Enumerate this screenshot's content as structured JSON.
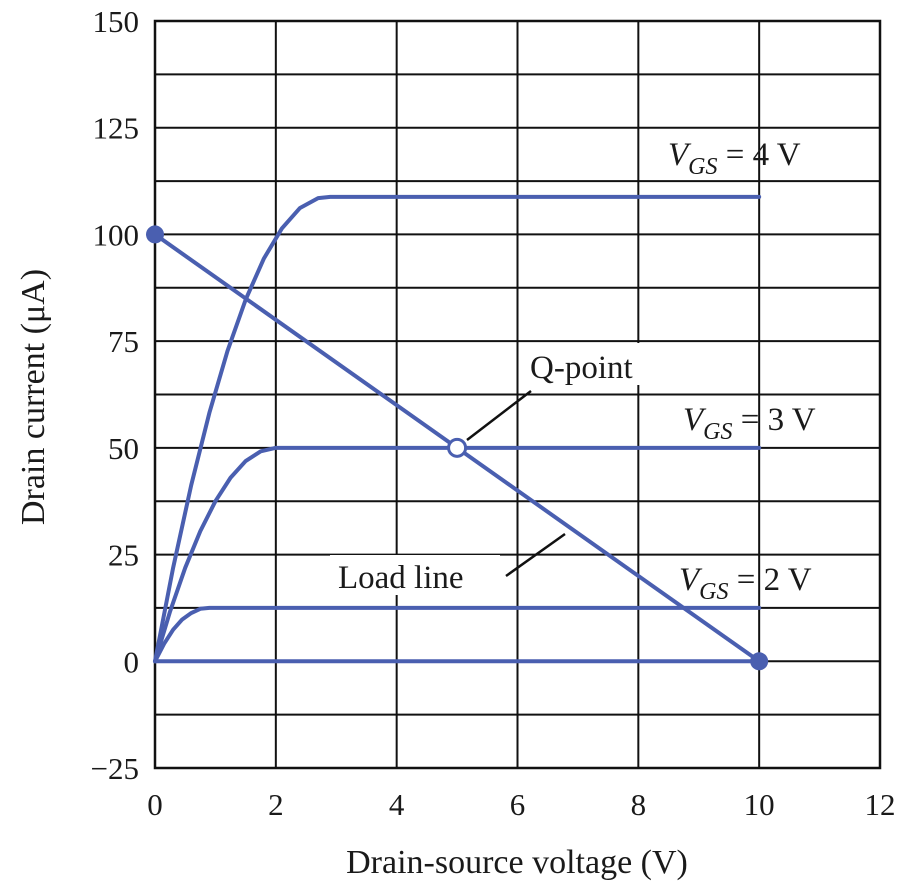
{
  "chart_data": {
    "type": "line",
    "xlabel": "Drain-source voltage (V)",
    "ylabel": "Drain current (μA)",
    "xlim": [
      0,
      12
    ],
    "ylim": [
      -25,
      150
    ],
    "x_ticks": [
      "0",
      "2",
      "4",
      "6",
      "8",
      "10",
      "12"
    ],
    "y_ticks": [
      "−25",
      "0",
      "25",
      "50",
      "75",
      "100",
      "125",
      "150"
    ],
    "grid": true,
    "line_color": "#4a5fb0",
    "series": [
      {
        "name": "V_GS = 4 V",
        "label_main": "V",
        "label_sub": "GS",
        "label_value": " = 4 V",
        "x": [
          0,
          0.3,
          0.6,
          0.9,
          1.2,
          1.5,
          1.8,
          2.1,
          2.4,
          2.7,
          2.9,
          10
        ],
        "y": [
          0,
          21.9,
          41.3,
          58.2,
          72.7,
          84.7,
          94.3,
          101.4,
          106.2,
          108.5,
          108.8,
          108.8
        ]
      },
      {
        "name": "V_GS = 3 V",
        "label_main": "V",
        "label_sub": "GS",
        "label_value": " = 3 V",
        "x": [
          0,
          0.25,
          0.5,
          0.75,
          1.0,
          1.25,
          1.5,
          1.75,
          2.0,
          10
        ],
        "y": [
          0,
          11.7,
          21.9,
          30.5,
          37.5,
          43.0,
          46.9,
          49.2,
          50,
          50
        ]
      },
      {
        "name": "V_GS = 2 V",
        "label_main": "V",
        "label_sub": "GS",
        "label_value": " = 2 V",
        "x": [
          0,
          0.15,
          0.3,
          0.45,
          0.6,
          0.75,
          0.9,
          10
        ],
        "y": [
          0,
          4.1,
          7.4,
          9.8,
          11.3,
          12.3,
          12.5,
          12.5
        ]
      },
      {
        "name": "",
        "x": [
          0,
          10
        ],
        "y": [
          0,
          0
        ]
      }
    ],
    "load_line": {
      "x": [
        0,
        10
      ],
      "y": [
        100,
        0
      ]
    },
    "endpoints": [
      {
        "x": 0,
        "y": 100
      },
      {
        "x": 10,
        "y": 0
      }
    ],
    "q_point": {
      "x": 5,
      "y": 50
    },
    "annotations": {
      "q_point": "Q-point",
      "load_line": "Load line"
    }
  }
}
